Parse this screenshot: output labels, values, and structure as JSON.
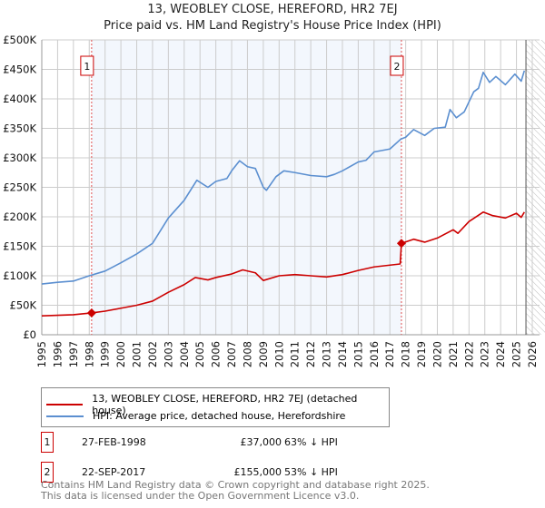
{
  "chart_data": {
    "type": "line",
    "title": "13, WEOBLEY CLOSE, HEREFORD, HR2 7EJ",
    "subtitle": "Price paid vs. HM Land Registry's House Price Index (HPI)",
    "xlim": [
      1995,
      2026
    ],
    "ylim": [
      0,
      500000
    ],
    "yticks": [
      {
        "v": 0,
        "label": "£0"
      },
      {
        "v": 50000,
        "label": "£50K"
      },
      {
        "v": 100000,
        "label": "£100K"
      },
      {
        "v": 150000,
        "label": "£150K"
      },
      {
        "v": 200000,
        "label": "£200K"
      },
      {
        "v": 250000,
        "label": "£250K"
      },
      {
        "v": 300000,
        "label": "£300K"
      },
      {
        "v": 350000,
        "label": "£350K"
      },
      {
        "v": 400000,
        "label": "£400K"
      },
      {
        "v": 450000,
        "label": "£450K"
      },
      {
        "v": 500000,
        "label": "£500K"
      }
    ],
    "xticks": [
      "1995",
      "1996",
      "1997",
      "1998",
      "1999",
      "2000",
      "2001",
      "2002",
      "2003",
      "2004",
      "2005",
      "2006",
      "2007",
      "2008",
      "2009",
      "2010",
      "2011",
      "2012",
      "2013",
      "2014",
      "2015",
      "2016",
      "2017",
      "2018",
      "2019",
      "2020",
      "2021",
      "2022",
      "2023",
      "2024",
      "2025",
      "2026"
    ],
    "grid": true,
    "series": [
      {
        "name": "13, WEOBLEY CLOSE, HEREFORD, HR2 7EJ (detached house)",
        "color": "#cc0000",
        "points": [
          [
            1995,
            32000
          ],
          [
            1997,
            34000
          ],
          [
            1998.15,
            37000
          ],
          [
            1999,
            40000
          ],
          [
            2000,
            45000
          ],
          [
            2001,
            50000
          ],
          [
            2002,
            57000
          ],
          [
            2003,
            72000
          ],
          [
            2004,
            85000
          ],
          [
            2004.7,
            97000
          ],
          [
            2005.5,
            93000
          ],
          [
            2006,
            97000
          ],
          [
            2007,
            103000
          ],
          [
            2007.7,
            110000
          ],
          [
            2008.5,
            105000
          ],
          [
            2009,
            92000
          ],
          [
            2010,
            100000
          ],
          [
            2011,
            102000
          ],
          [
            2012,
            100000
          ],
          [
            2013,
            98000
          ],
          [
            2014,
            102000
          ],
          [
            2015,
            109000
          ],
          [
            2016,
            115000
          ],
          [
            2017.65,
            120000
          ],
          [
            2017.73,
            155000
          ],
          [
            2018.5,
            162000
          ],
          [
            2019.2,
            157000
          ],
          [
            2020,
            164000
          ],
          [
            2021,
            178000
          ],
          [
            2021.3,
            172000
          ],
          [
            2022,
            192000
          ],
          [
            2022.9,
            208000
          ],
          [
            2023.5,
            202000
          ],
          [
            2024.3,
            198000
          ],
          [
            2025,
            206000
          ],
          [
            2025.3,
            199000
          ],
          [
            2025.5,
            208000
          ]
        ]
      },
      {
        "name": "HPI: Average price, detached house, Herefordshire",
        "color": "#5b8fd0",
        "points": [
          [
            1995,
            86000
          ],
          [
            1996,
            89000
          ],
          [
            1997,
            91000
          ],
          [
            1998,
            100000
          ],
          [
            1999,
            108000
          ],
          [
            2000,
            122000
          ],
          [
            2001,
            137000
          ],
          [
            2002,
            155000
          ],
          [
            2003,
            198000
          ],
          [
            2004,
            228000
          ],
          [
            2004.8,
            262000
          ],
          [
            2005.5,
            250000
          ],
          [
            2006,
            260000
          ],
          [
            2006.7,
            265000
          ],
          [
            2007,
            278000
          ],
          [
            2007.5,
            295000
          ],
          [
            2008,
            285000
          ],
          [
            2008.5,
            282000
          ],
          [
            2009,
            250000
          ],
          [
            2009.2,
            245000
          ],
          [
            2009.8,
            268000
          ],
          [
            2010.3,
            278000
          ],
          [
            2011,
            275000
          ],
          [
            2012,
            270000
          ],
          [
            2013,
            268000
          ],
          [
            2013.5,
            272000
          ],
          [
            2014,
            278000
          ],
          [
            2015,
            293000
          ],
          [
            2015.5,
            296000
          ],
          [
            2016,
            310000
          ],
          [
            2017,
            315000
          ],
          [
            2017.7,
            332000
          ],
          [
            2018,
            335000
          ],
          [
            2018.5,
            348000
          ],
          [
            2019.2,
            338000
          ],
          [
            2019.8,
            350000
          ],
          [
            2020.5,
            352000
          ],
          [
            2020.8,
            382000
          ],
          [
            2021.2,
            368000
          ],
          [
            2021.7,
            378000
          ],
          [
            2022.3,
            412000
          ],
          [
            2022.6,
            418000
          ],
          [
            2022.9,
            445000
          ],
          [
            2023.3,
            428000
          ],
          [
            2023.7,
            438000
          ],
          [
            2024.3,
            424000
          ],
          [
            2024.9,
            442000
          ],
          [
            2025.3,
            430000
          ],
          [
            2025.5,
            448000
          ]
        ]
      }
    ],
    "sales": [
      {
        "id": "1",
        "x": 1998.15,
        "price": 37000,
        "date": "27-FEB-1998",
        "price_label": "£37,000",
        "hpi": "63% ↓ HPI"
      },
      {
        "id": "2",
        "x": 2017.73,
        "price": 155000,
        "date": "22-SEP-2017",
        "price_label": "£155,000",
        "hpi": "53% ↓ HPI"
      }
    ],
    "legend_placement": "below",
    "forecast_from": 2025.6
  },
  "footer": {
    "line1": "Contains HM Land Registry data © Crown copyright and database right 2025.",
    "line2": "This data is licensed under the Open Government Licence v3.0."
  }
}
